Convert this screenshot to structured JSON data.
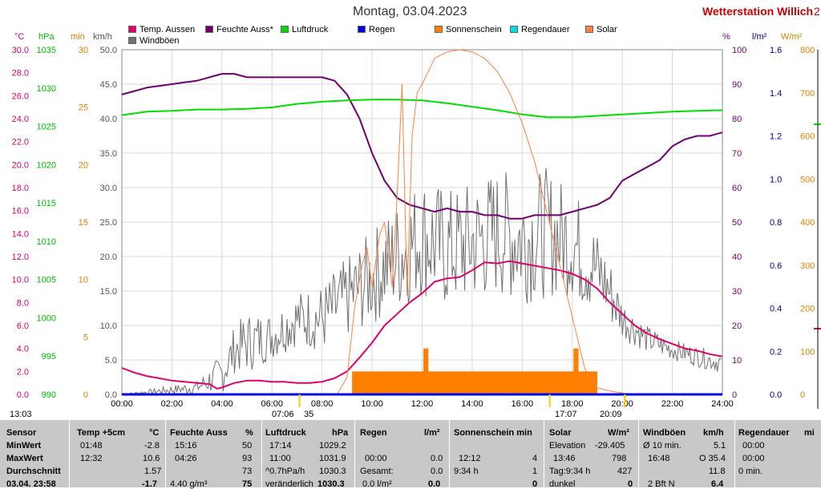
{
  "header": {
    "date": "Montag, 03.04.2023",
    "station": "Wetterstation Willich",
    "station_suffix": "2"
  },
  "legend": [
    {
      "label": "Temp. Aussen",
      "color": "#e0006e"
    },
    {
      "label": "Feuchte Auss*",
      "color": "#700070"
    },
    {
      "label": "Luftdruck",
      "color": "#00e000"
    },
    {
      "label": "Regen",
      "color": "#0000e0"
    },
    {
      "label": "Sonnenschein",
      "color": "#ff8000"
    },
    {
      "label": "Regendauer",
      "color": "#00e0e0"
    },
    {
      "label": "Solar",
      "color": "#ff8040"
    },
    {
      "label": "Windböen",
      "color": "#707070"
    }
  ],
  "axis_titles": {
    "temp": "°C",
    "pressure": "hPa",
    "sun": "min",
    "wind": "km/h",
    "humidity": "%",
    "rain": "l/m²",
    "solar": "W/m²"
  },
  "colors": {
    "temp": "#e0006e",
    "humidity": "#700070",
    "pressure": "#00e000",
    "rain": "#0000e0",
    "sunshine": "#ff8000",
    "solar": "#ff8040",
    "wind": "#707070",
    "axis_sun": "#e08000",
    "axis_rain": "#000090"
  },
  "chart_data": {
    "type": "line",
    "x_ticks": [
      "00:00",
      "02:00",
      "04:00",
      "06:00",
      "08:00",
      "10:00",
      "12:00",
      "14:00",
      "16:00",
      "18:00",
      "20:00",
      "22:00",
      "24:00"
    ],
    "axes": {
      "temp": {
        "min": 0,
        "max": 30,
        "ticks": [
          "0.0",
          "2.0",
          "4.0",
          "6.0",
          "8.0",
          "10.0",
          "12.0",
          "14.0",
          "16.0",
          "18.0",
          "20.0",
          "22.0",
          "24.0",
          "26.0",
          "28.0",
          "30.0"
        ]
      },
      "pressure": {
        "min": 990,
        "max": 1039,
        "ticks": [
          "990",
          "995",
          "1000",
          "1005",
          "1010",
          "1015",
          "1020",
          "1025",
          "1030",
          "1035"
        ]
      },
      "sun": {
        "min": 0,
        "max": 30,
        "ticks": [
          "0",
          "5",
          "10",
          "15",
          "20",
          "25",
          "30"
        ]
      },
      "wind": {
        "min": 0,
        "max": 50,
        "ticks": [
          "0.0",
          "5.0",
          "10.0",
          "15.0",
          "20.0",
          "25.0",
          "30.0",
          "35.0",
          "40.0",
          "45.0",
          "50.0"
        ]
      },
      "humidity": {
        "min": 0,
        "max": 100,
        "ticks": [
          "0",
          "10",
          "20",
          "30",
          "40",
          "50",
          "60",
          "70",
          "80",
          "90",
          "100"
        ]
      },
      "rain": {
        "min": 0,
        "max": 1.6,
        "ticks": [
          "0.0",
          "0.2",
          "0.4",
          "0.6",
          "0.8",
          "1.0",
          "1.2",
          "1.4",
          "1.6"
        ]
      },
      "solar": {
        "min": 0,
        "max": 800,
        "ticks": [
          "0",
          "100",
          "200",
          "300",
          "400",
          "500",
          "600",
          "700",
          "800"
        ]
      }
    },
    "series": [
      {
        "name": "Temp. Aussen",
        "key": "temp",
        "axis": "temp",
        "x": [
          0,
          0.5,
          1,
          1.5,
          2,
          2.5,
          3,
          3.5,
          3.8,
          4,
          4.5,
          5,
          5.5,
          6,
          6.5,
          7,
          7.5,
          8,
          8.5,
          9,
          9.5,
          10,
          10.5,
          11,
          11.5,
          12,
          12.5,
          13,
          13.5,
          14,
          14.5,
          15,
          15.5,
          16,
          16.5,
          17,
          17.5,
          18,
          18.5,
          19,
          19.5,
          20,
          20.5,
          21,
          21.5,
          22,
          22.5,
          23,
          23.5,
          24
        ],
        "y": [
          2.3,
          1.9,
          1.6,
          1.4,
          1.2,
          1.1,
          1.0,
          0.9,
          0.5,
          0.6,
          1.0,
          1.2,
          1.2,
          1.1,
          1.1,
          1.0,
          1.0,
          1.1,
          1.4,
          2.0,
          3.2,
          4.5,
          6.0,
          7.0,
          8.0,
          8.8,
          9.8,
          10.1,
          10.2,
          10.8,
          11.5,
          11.4,
          11.6,
          11.4,
          11.2,
          11.0,
          10.8,
          10.5,
          10.0,
          9.2,
          8.0,
          7.0,
          6.0,
          5.3,
          4.8,
          4.4,
          4.0,
          3.8,
          3.5,
          3.3
        ]
      },
      {
        "name": "Feuchte Auss*",
        "key": "humidity",
        "axis": "humidity",
        "x": [
          0,
          0.5,
          1,
          1.5,
          2,
          2.5,
          3,
          3.5,
          4,
          4.5,
          5,
          6,
          7,
          8,
          8.5,
          9,
          9.5,
          10,
          10.5,
          11,
          11.5,
          12,
          12.5,
          13,
          13.5,
          14,
          14.5,
          15,
          15.5,
          16,
          16.5,
          17,
          17.5,
          18,
          18.5,
          19,
          19.5,
          20,
          20.5,
          21,
          21.5,
          22,
          22.5,
          23,
          23.5,
          24
        ],
        "y": [
          87,
          88,
          89,
          89.5,
          90,
          90.5,
          91,
          92,
          93,
          93,
          92,
          92,
          92,
          92,
          91,
          87,
          80,
          70,
          62,
          57,
          55,
          54,
          53,
          54,
          53,
          53,
          52,
          52,
          51,
          51,
          52,
          52,
          52,
          53,
          54,
          55,
          57,
          62,
          64,
          66,
          68,
          72,
          74,
          75,
          75,
          76
        ]
      },
      {
        "name": "Luftdruck",
        "key": "pressure",
        "axis": "pressure",
        "x": [
          0,
          1,
          2,
          3,
          4,
          5,
          6,
          7,
          8,
          9,
          10,
          11,
          12,
          13,
          14,
          15,
          16,
          17,
          18,
          19,
          20,
          21,
          22,
          23,
          24
        ],
        "y": [
          1029.7,
          1030.2,
          1030.3,
          1030.5,
          1030.5,
          1030.6,
          1030.8,
          1031.3,
          1031.6,
          1031.8,
          1031.9,
          1031.9,
          1031.8,
          1031.4,
          1030.9,
          1030.4,
          1029.8,
          1029.4,
          1029.4,
          1029.6,
          1029.8,
          1030.0,
          1030.2,
          1030.3,
          1030.4
        ]
      },
      {
        "name": "Solar",
        "key": "solar",
        "axis": "solar",
        "x": [
          8.6,
          9,
          9.3,
          9.6,
          9.8,
          10,
          10.3,
          10.5,
          10.8,
          11,
          11.2,
          11.4,
          11.6,
          11.8,
          12,
          12.5,
          13,
          13.5,
          14,
          14.5,
          15,
          15.5,
          16,
          16.5,
          17,
          17.5,
          18,
          18.5,
          18.8,
          19,
          19.5,
          20,
          20.2
        ],
        "y": [
          0,
          40,
          200,
          300,
          340,
          250,
          370,
          400,
          250,
          460,
          720,
          230,
          600,
          700,
          720,
          780,
          795,
          800,
          795,
          780,
          750,
          700,
          630,
          540,
          420,
          300,
          180,
          60,
          30,
          15,
          8,
          3,
          0
        ]
      },
      {
        "name": "Regen",
        "key": "rain",
        "axis": "rain",
        "x": [
          0,
          24
        ],
        "y": [
          0.0,
          0.0
        ]
      }
    ],
    "sunshine": {
      "name": "Sonnenschein",
      "axis": "sun",
      "start": 9.2,
      "end": 19.0,
      "value": 2,
      "peaks": [
        {
          "start": 12.05,
          "end": 12.25,
          "value": 4
        },
        {
          "start": 18.05,
          "end": 18.25,
          "value": 4
        }
      ]
    },
    "wind_gusts": {
      "name": "Windböen",
      "axis": "wind",
      "envelope_x": [
        0,
        3,
        3.5,
        4,
        4.5,
        5,
        6,
        7,
        8,
        8.5,
        9,
        9.5,
        10,
        11,
        12,
        13,
        14,
        15,
        16,
        17,
        18,
        18.5,
        19,
        19.5,
        20,
        21,
        22,
        23,
        24
      ],
      "envelope_min": [
        0,
        0,
        0,
        0,
        3,
        3,
        5,
        7,
        6,
        7,
        8,
        9,
        10,
        12,
        14,
        12,
        13,
        14,
        13,
        14,
        14,
        12,
        12,
        10,
        8,
        6,
        5,
        4,
        3
      ],
      "envelope_max": [
        0,
        2,
        4,
        6,
        10,
        12,
        12,
        15,
        16,
        18,
        20,
        22,
        24,
        28,
        32,
        30,
        31,
        33,
        32,
        33,
        30,
        28,
        24,
        20,
        14,
        10,
        8,
        7,
        6
      ]
    }
  },
  "sun_row": {
    "left": "13:03",
    "mid": "07:06",
    "mid2": "35",
    "right_a": "17:07",
    "right_b": "20:09"
  },
  "table": {
    "headers": {
      "sensor": "Sensor",
      "temp": "Temp +5cm",
      "temp_u": "°C",
      "feuchte": "Feuchte Auss",
      "feuchte_u": "%",
      "luftdruck": "Luftdruck",
      "luftdruck_u": "hPa",
      "regen": "Regen",
      "regen_u": "l/m²",
      "sonne": "Sonnenschein min",
      "solar": "Solar",
      "solar_u": "W/m²",
      "wind": "Windböen",
      "wind_u": "km/h",
      "regendauer": "Regendauer",
      "regendauer_u": "mi"
    },
    "rows": {
      "min": {
        "label": "MinWert",
        "t_time": "01:48",
        "t_val": "-2.8",
        "f_time": "15:16",
        "f_val": "50",
        "l_time": "17:14",
        "l_val": "1029.2",
        "s_label": "Elevation",
        "s_val": "-29.405",
        "w_label": "Ø 10 min.",
        "w_val": "5.1",
        "rd": "00:00"
      },
      "max": {
        "label": "MaxWert",
        "t_time": "12:32",
        "t_val": "10.6",
        "f_time": "04:26",
        "f_val": "93",
        "l_time": "11:00",
        "l_val": "1031.9",
        "r_time": "00:00",
        "r_val": "0.0",
        "so_time": "12:12",
        "so_val": "4",
        "s_time": "13:46",
        "s_val": "798",
        "w_time": "16:48",
        "w_val": "O 35.4",
        "rd": "00:00"
      },
      "avg": {
        "label": "Durchschnitt",
        "t_val": "1.57",
        "f_val": "73",
        "l_label": "^0.7hPa/h",
        "l_val": "1030.3",
        "r_label": "Gesamt:",
        "r_val": "0.0",
        "so_label": "9:34 h",
        "so_val": "1",
        "s_label": "Tag:9:34 h",
        "s_val": "427",
        "w_val": "11.8",
        "rd": "0 min."
      },
      "cur": {
        "label": "03.04. 23:58",
        "t_val": "-1.7",
        "f_label": "4.40 g/m³",
        "f_val": "75",
        "l_label": "veränderlich",
        "l_val": "1030.3",
        "r_label": "0.0 l/m²",
        "r_val": "0.0",
        "so_val": "0",
        "s_label": "dunkel",
        "s_val": "0",
        "w_label": "2 Bft N",
        "w_val": "6.4"
      }
    }
  }
}
